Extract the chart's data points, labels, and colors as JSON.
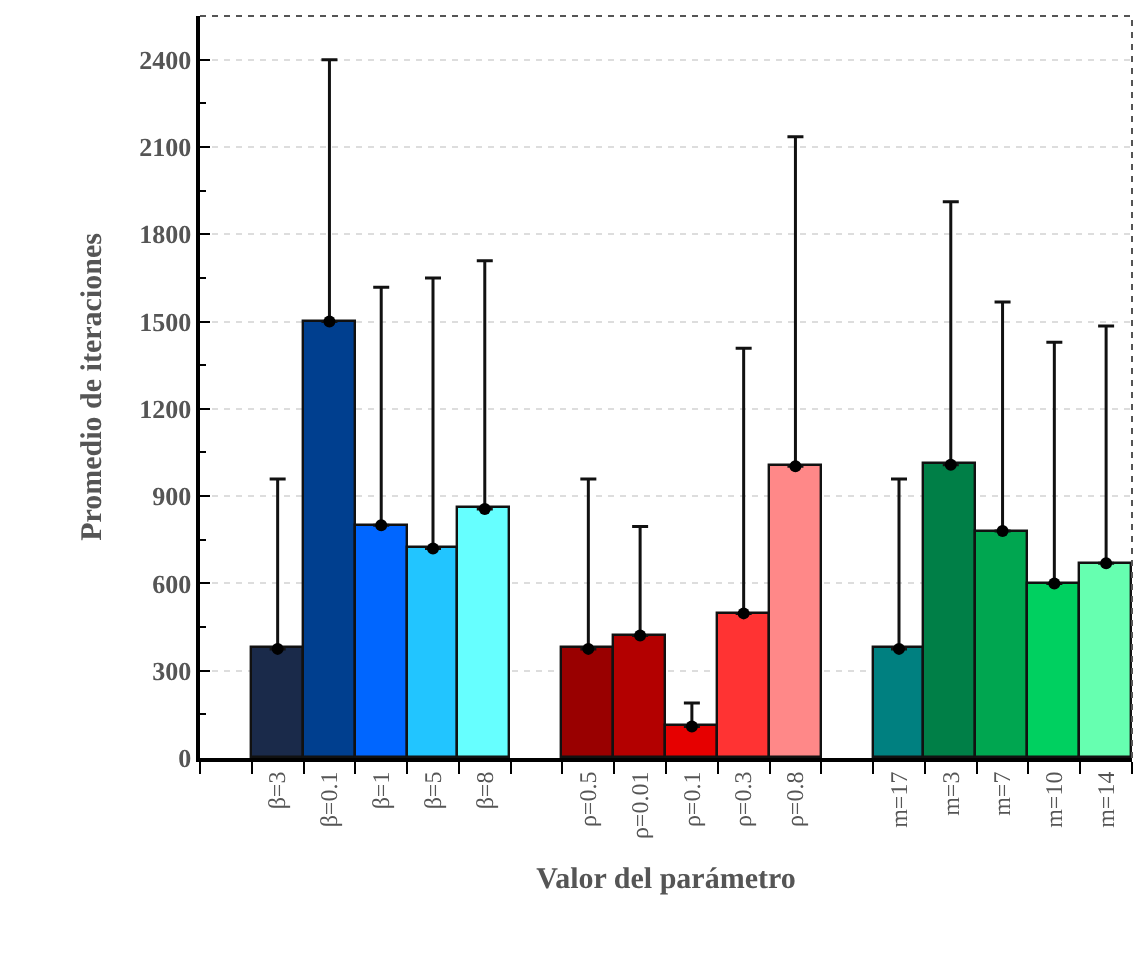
{
  "chart_data": {
    "type": "bar",
    "xlabel": "Valor del parámetro",
    "ylabel": "Promedio de iteraciones",
    "categories": [
      null,
      "β=3",
      "β=0.1",
      "β=1",
      "β=5",
      "β=8",
      null,
      "ρ=0.5",
      "ρ=0.01",
      "ρ=0.1",
      "ρ=0.3",
      "ρ=0.8",
      null,
      "m=17",
      "m=3",
      "m=7",
      "m=10",
      "m=14"
    ],
    "series": [
      {
        "values": [
          null,
          375,
          1500,
          800,
          720,
          856,
          null,
          375,
          421,
          108,
          497,
          1003,
          null,
          375,
          1008,
          780,
          600,
          669
        ],
        "colors": [
          "#ffffff",
          "#1a2a4a",
          "#003f8f",
          "#0066ff",
          "#22c5ff",
          "#66ffff",
          "#ffffff",
          "#990000",
          "#b30000",
          "#e60000",
          "#ff3333",
          "#ff8888",
          "#ffffff",
          "#008080",
          "#007f47",
          "#00a650",
          "#00d060",
          "#66ffb0"
        ],
        "errors": [
          null,
          [
            375,
            959
          ],
          [
            1500,
            2400
          ],
          [
            800,
            1618
          ],
          [
            720,
            1650
          ],
          [
            856,
            1709
          ],
          null,
          [
            375,
            959
          ],
          [
            421,
            796
          ],
          [
            108,
            189
          ],
          [
            497,
            1408
          ],
          [
            1003,
            2135
          ],
          null,
          [
            375,
            959
          ],
          [
            1008,
            1912
          ],
          [
            780,
            1567
          ],
          [
            600,
            1429
          ],
          [
            669,
            1485
          ]
        ]
      },
      {
        "type": "scatter",
        "color": "#000000",
        "marker": "circle",
        "values": [
          null,
          375,
          1500,
          800,
          720,
          856,
          null,
          375,
          421,
          108,
          497,
          1003,
          null,
          375,
          1008,
          780,
          600,
          669
        ]
      }
    ],
    "ylim": [
      0,
      2550
    ],
    "yticks": [
      0,
      300,
      600,
      900,
      1200,
      1500,
      1800,
      2100,
      2400
    ],
    "grid": "y"
  }
}
